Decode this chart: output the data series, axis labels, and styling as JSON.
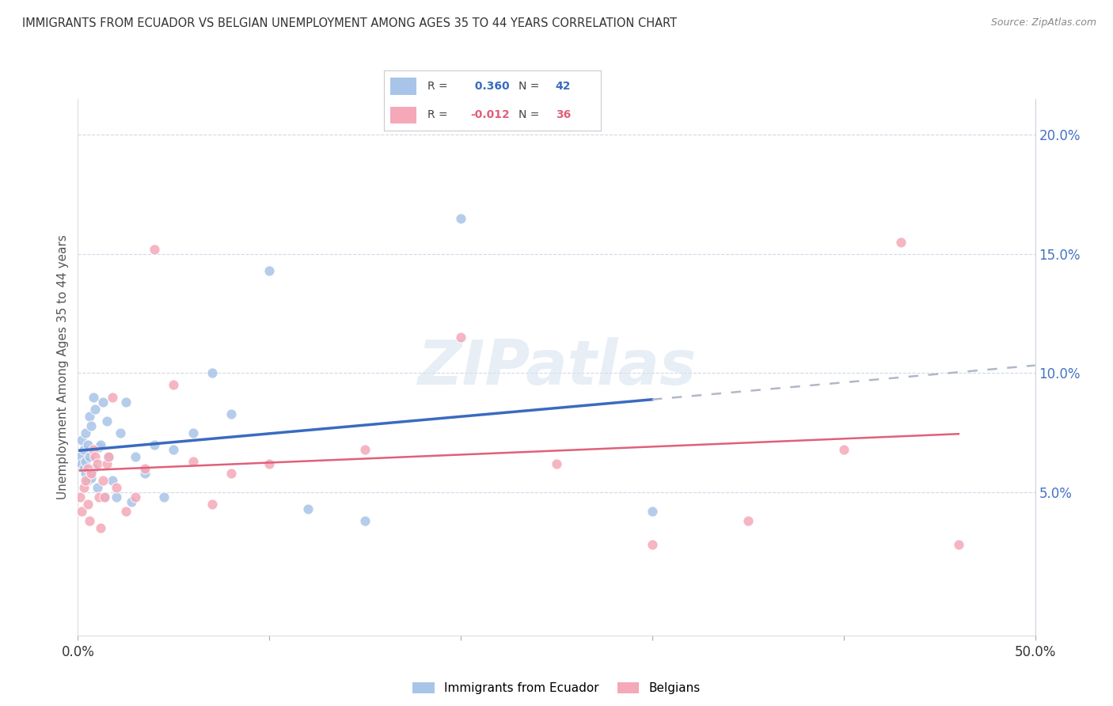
{
  "title": "IMMIGRANTS FROM ECUADOR VS BELGIAN UNEMPLOYMENT AMONG AGES 35 TO 44 YEARS CORRELATION CHART",
  "source": "Source: ZipAtlas.com",
  "ylabel": "Unemployment Among Ages 35 to 44 years",
  "xlim": [
    0.0,
    0.5
  ],
  "ylim": [
    -0.01,
    0.215
  ],
  "yticks_right": [
    0.05,
    0.1,
    0.15,
    0.2
  ],
  "ytick_right_labels": [
    "5.0%",
    "10.0%",
    "15.0%",
    "20.0%"
  ],
  "r_ecuador": 0.36,
  "n_ecuador": 42,
  "r_belgian": -0.012,
  "n_belgian": 36,
  "color_ecuador": "#a8c4e8",
  "color_belgian": "#f4a8b8",
  "trendline_ecuador_color": "#3a6bbf",
  "trendline_belgian_color": "#e0607a",
  "trendline_extension_color": "#b0b8c8",
  "background_color": "#ffffff",
  "watermark": "ZIPatlas",
  "ecuador_x": [
    0.001,
    0.002,
    0.002,
    0.003,
    0.003,
    0.004,
    0.004,
    0.004,
    0.005,
    0.005,
    0.006,
    0.006,
    0.007,
    0.007,
    0.008,
    0.008,
    0.009,
    0.01,
    0.011,
    0.012,
    0.013,
    0.014,
    0.015,
    0.016,
    0.018,
    0.02,
    0.022,
    0.025,
    0.028,
    0.03,
    0.035,
    0.04,
    0.045,
    0.05,
    0.06,
    0.07,
    0.08,
    0.1,
    0.12,
    0.15,
    0.2,
    0.3
  ],
  "ecuador_y": [
    0.065,
    0.062,
    0.072,
    0.068,
    0.06,
    0.075,
    0.063,
    0.058,
    0.055,
    0.07,
    0.082,
    0.065,
    0.078,
    0.056,
    0.09,
    0.06,
    0.085,
    0.052,
    0.069,
    0.07,
    0.088,
    0.048,
    0.08,
    0.065,
    0.055,
    0.048,
    0.075,
    0.088,
    0.046,
    0.065,
    0.058,
    0.07,
    0.048,
    0.068,
    0.075,
    0.1,
    0.083,
    0.143,
    0.043,
    0.038,
    0.165,
    0.042
  ],
  "belgian_x": [
    0.001,
    0.002,
    0.003,
    0.004,
    0.005,
    0.005,
    0.006,
    0.007,
    0.008,
    0.009,
    0.01,
    0.011,
    0.012,
    0.013,
    0.014,
    0.015,
    0.016,
    0.018,
    0.02,
    0.025,
    0.03,
    0.035,
    0.04,
    0.05,
    0.06,
    0.07,
    0.08,
    0.1,
    0.15,
    0.2,
    0.25,
    0.3,
    0.35,
    0.4,
    0.43,
    0.46
  ],
  "belgian_y": [
    0.048,
    0.042,
    0.052,
    0.055,
    0.06,
    0.045,
    0.038,
    0.058,
    0.068,
    0.065,
    0.062,
    0.048,
    0.035,
    0.055,
    0.048,
    0.062,
    0.065,
    0.09,
    0.052,
    0.042,
    0.048,
    0.06,
    0.152,
    0.095,
    0.063,
    0.045,
    0.058,
    0.062,
    0.068,
    0.115,
    0.062,
    0.028,
    0.038,
    0.068,
    0.155,
    0.028
  ]
}
